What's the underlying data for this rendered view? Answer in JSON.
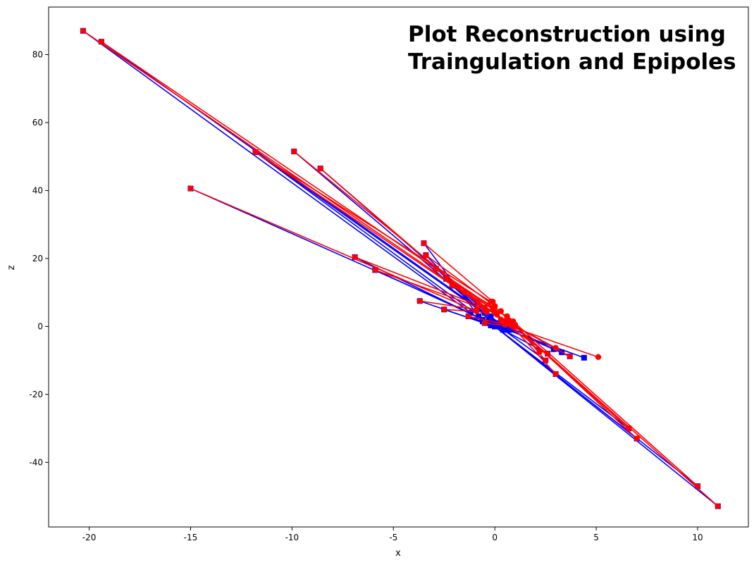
{
  "chart_data": {
    "type": "line",
    "title_lines": [
      "Plot Reconstruction using",
      "Traingulation and Epipoles"
    ],
    "xlabel": "x",
    "ylabel": "z",
    "xlim": [
      -22,
      12.5
    ],
    "ylim": [
      -59,
      94
    ],
    "xticks": [
      -20,
      -15,
      -10,
      -5,
      0,
      5,
      10
    ],
    "yticks": [
      -40,
      -20,
      0,
      20,
      40,
      60,
      80
    ],
    "grid": false,
    "legend": "none",
    "series": [
      {
        "color": "#0000ff",
        "marker": "square",
        "segments": [
          [
            [
              -20.3,
              87.0
            ],
            [
              -0.6,
              1.5
            ]
          ],
          [
            [
              -19.4,
              83.8
            ],
            [
              0.7,
              -1.0
            ]
          ],
          [
            [
              -11.8,
              51.3
            ],
            [
              -0.3,
              1.0
            ]
          ],
          [
            [
              -11.8,
              51.3
            ],
            [
              0.5,
              -0.5
            ]
          ],
          [
            [
              -9.9,
              51.5
            ],
            [
              -0.5,
              4.0
            ]
          ],
          [
            [
              -8.6,
              46.5
            ],
            [
              -0.2,
              3.0
            ]
          ],
          [
            [
              -15.0,
              40.6
            ],
            [
              -1.2,
              4.0
            ]
          ],
          [
            [
              -6.9,
              20.4
            ],
            [
              -0.6,
              2.0
            ]
          ],
          [
            [
              -5.9,
              16.6
            ],
            [
              -0.2,
              1.0
            ]
          ],
          [
            [
              -3.7,
              7.5
            ],
            [
              -0.2,
              0.3
            ]
          ],
          [
            [
              -2.5,
              5.0
            ],
            [
              0.0,
              0.0
            ]
          ],
          [
            [
              -3.5,
              24.5
            ],
            [
              -0.8,
              3.0
            ]
          ],
          [
            [
              -3.4,
              21.0
            ],
            [
              -0.3,
              2.0
            ]
          ],
          [
            [
              -2.9,
              17.0
            ],
            [
              0.2,
              1.0
            ]
          ],
          [
            [
              -2.4,
              14.0
            ],
            [
              0.1,
              0.5
            ]
          ],
          [
            [
              -2.1,
              12.0
            ],
            [
              -0.1,
              1.0
            ]
          ],
          [
            [
              -1.5,
              10.0
            ],
            [
              0.3,
              0.2
            ]
          ],
          [
            [
              -1.3,
              3.0
            ],
            [
              0.0,
              0.0
            ]
          ],
          [
            [
              -0.5,
              1.0
            ],
            [
              0.0,
              0.0
            ]
          ],
          [
            [
              11.0,
              -52.9
            ],
            [
              0.0,
              0.0
            ]
          ],
          [
            [
              10.0,
              -47.0
            ],
            [
              0.0,
              0.0
            ]
          ],
          [
            [
              7.0,
              -33.0
            ],
            [
              0.0,
              0.0
            ]
          ],
          [
            [
              6.6,
              -30.0
            ],
            [
              0.0,
              0.0
            ]
          ],
          [
            [
              3.0,
              -14.0
            ],
            [
              0.0,
              0.0
            ]
          ],
          [
            [
              2.5,
              -10.0
            ],
            [
              0.2,
              0.0
            ]
          ],
          [
            [
              2.6,
              -8.0
            ],
            [
              0.4,
              -1.0
            ]
          ],
          [
            [
              4.4,
              -9.2
            ],
            [
              0.6,
              -1.0
            ]
          ],
          [
            [
              3.7,
              -8.8
            ],
            [
              0.7,
              -1.0
            ]
          ],
          [
            [
              3.3,
              -7.6
            ],
            [
              0.6,
              -0.8
            ]
          ],
          [
            [
              2.9,
              -6.7
            ],
            [
              0.9,
              -0.7
            ]
          ]
        ]
      },
      {
        "color": "#ff0000",
        "marker": "circle",
        "segments": [
          [
            [
              -20.3,
              87.0
            ],
            [
              0.7,
              1.0
            ]
          ],
          [
            [
              -19.4,
              83.8
            ],
            [
              0.9,
              1.5
            ]
          ],
          [
            [
              -11.8,
              51.3
            ],
            [
              -0.2,
              7.3
            ]
          ],
          [
            [
              -11.8,
              51.3
            ],
            [
              0.5,
              1.6
            ]
          ],
          [
            [
              -9.9,
              51.5
            ],
            [
              0.3,
              2.0
            ]
          ],
          [
            [
              -8.6,
              46.5
            ],
            [
              -0.5,
              5.0
            ]
          ],
          [
            [
              -15.0,
              40.6
            ],
            [
              -0.9,
              4.5
            ]
          ],
          [
            [
              -6.9,
              20.4
            ],
            [
              -0.5,
              5.5
            ]
          ],
          [
            [
              -5.9,
              16.6
            ],
            [
              0.0,
              4.0
            ]
          ],
          [
            [
              -3.7,
              7.5
            ],
            [
              -0.9,
              5.0
            ]
          ],
          [
            [
              -2.5,
              5.0
            ],
            [
              -0.4,
              4.2
            ]
          ],
          [
            [
              -3.5,
              24.5
            ],
            [
              -0.1,
              7.3
            ]
          ],
          [
            [
              -3.4,
              21.0
            ],
            [
              0.0,
              6.0
            ]
          ],
          [
            [
              -2.9,
              17.0
            ],
            [
              -0.1,
              5.0
            ]
          ],
          [
            [
              -2.4,
              14.0
            ],
            [
              0.3,
              4.5
            ]
          ],
          [
            [
              -2.1,
              12.0
            ],
            [
              0.1,
              3.5
            ]
          ],
          [
            [
              -1.5,
              10.0
            ],
            [
              0.6,
              3.0
            ]
          ],
          [
            [
              -1.3,
              3.0
            ],
            [
              1.0,
              0.0
            ]
          ],
          [
            [
              -0.5,
              1.0
            ],
            [
              1.0,
              0.0
            ]
          ],
          [
            [
              11.0,
              -52.9
            ],
            [
              0.7,
              1.8
            ]
          ],
          [
            [
              10.0,
              -47.0
            ],
            [
              0.9,
              1.5
            ]
          ],
          [
            [
              7.0,
              -33.0
            ],
            [
              1.0,
              0.3
            ]
          ],
          [
            [
              6.6,
              -30.0
            ],
            [
              0.8,
              1.0
            ]
          ],
          [
            [
              3.0,
              -14.0
            ],
            [
              0.7,
              1.0
            ]
          ],
          [
            [
              2.5,
              -10.0
            ],
            [
              1.0,
              0.5
            ]
          ],
          [
            [
              2.6,
              -8.0
            ],
            [
              0.5,
              0.8
            ]
          ],
          [
            [
              5.1,
              -9.0
            ],
            [
              0.5,
              0.5
            ]
          ],
          [
            [
              3.7,
              -8.8
            ],
            [
              0.7,
              1.0
            ]
          ],
          [
            [
              3.0,
              -6.3
            ],
            [
              0.8,
              0.8
            ]
          ],
          [
            [
              2.2,
              -7.5
            ],
            [
              0.9,
              1.0
            ]
          ]
        ]
      }
    ]
  }
}
